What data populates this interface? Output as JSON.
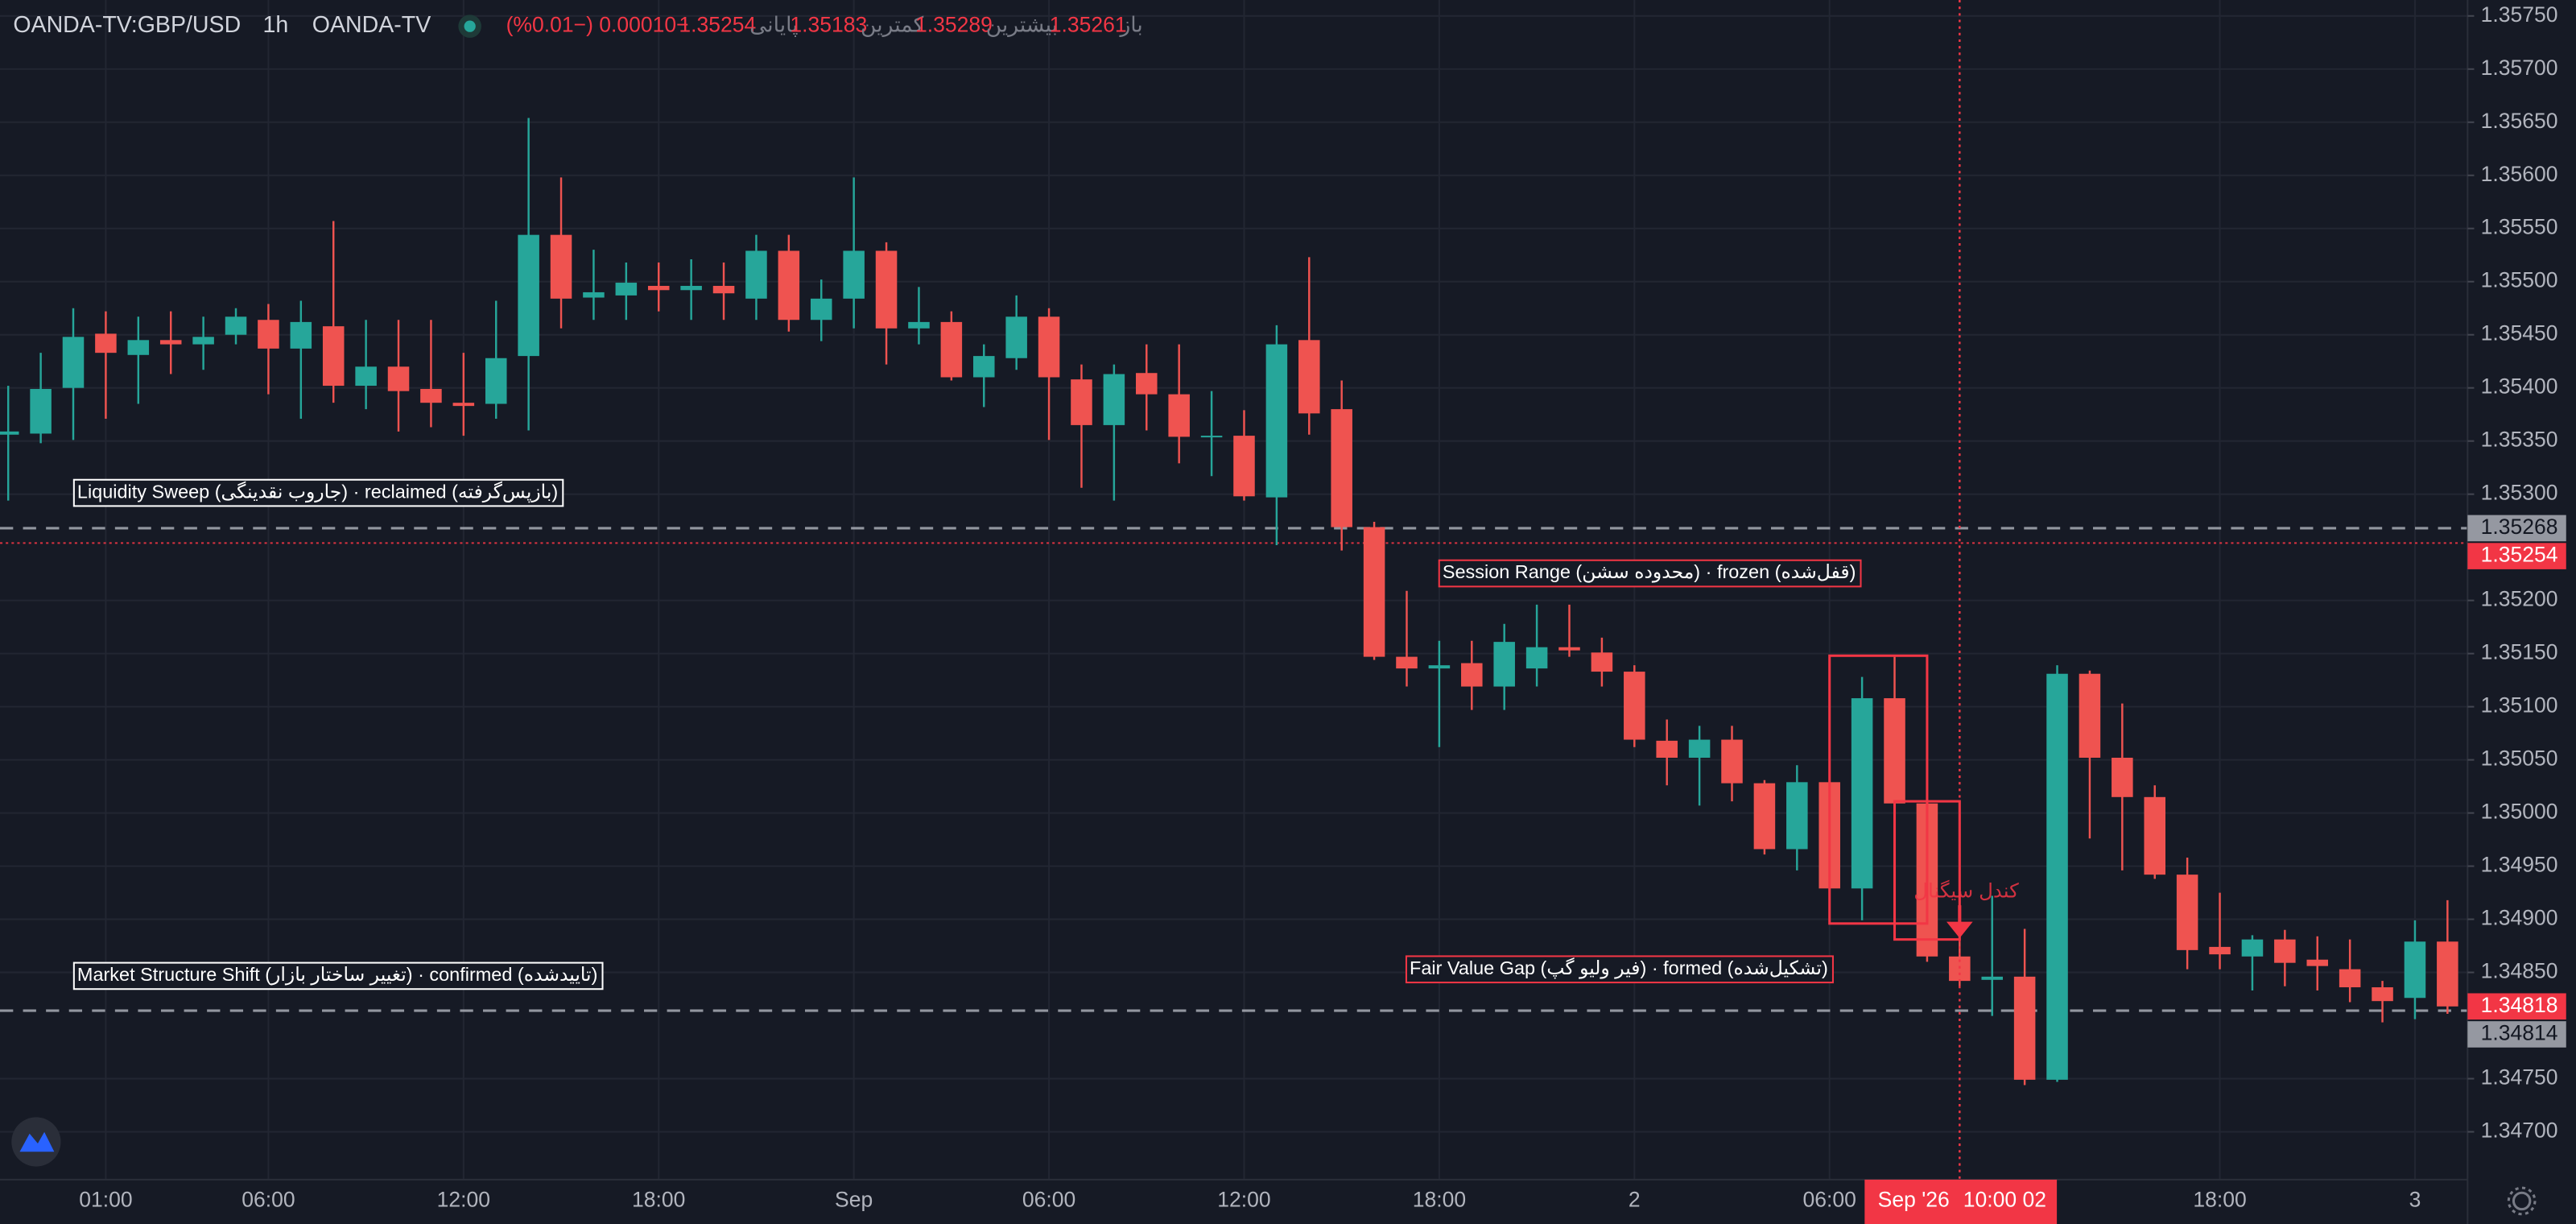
{
  "header": {
    "symbol": "OANDA-TV:GBP/USD",
    "interval": "1h",
    "source": "OANDA-TV",
    "ohlc": [
      {
        "label": "باز",
        "value": 1.35261
      },
      {
        "label": "بیشترین",
        "value": 1.35289
      },
      {
        "label": "کمترین",
        "value": 1.35183
      },
      {
        "label": "پایانی",
        "value": 1.35254
      }
    ],
    "change": "−0.00010 (−0.01%)"
  },
  "chart_data": {
    "type": "candlestick",
    "categories": [
      null,
      null,
      null,
      "01:00",
      null,
      null,
      null,
      null,
      "06:00",
      null,
      null,
      null,
      null,
      null,
      "12:00",
      null,
      null,
      null,
      null,
      null,
      "18:00",
      null,
      null,
      null,
      null,
      null,
      "Sep",
      null,
      null,
      null,
      null,
      null,
      "06:00",
      null,
      null,
      null,
      null,
      null,
      "12:00",
      null,
      null,
      null,
      null,
      null,
      "18:00",
      null,
      null,
      null,
      null,
      null,
      "2",
      null,
      null,
      null,
      null,
      null,
      "06:00",
      null,
      null,
      null,
      null,
      null,
      null,
      null,
      null,
      null,
      null,
      null,
      "18:00",
      null,
      null,
      null,
      null,
      null,
      "3",
      null
    ],
    "open": [
      1.35356,
      1.35357,
      1.354,
      1.35451,
      1.35431,
      1.35445,
      1.35441,
      1.3545,
      1.35464,
      1.35437,
      1.35458,
      1.35402,
      1.3542,
      1.35399,
      1.35386,
      1.35385,
      1.3543,
      1.35544,
      1.35485,
      1.35487,
      1.35496,
      1.35492,
      1.35496,
      1.35484,
      1.35529,
      1.35464,
      1.35484,
      1.35529,
      1.35456,
      1.35462,
      1.3541,
      1.35428,
      1.35467,
      1.35408,
      1.35365,
      1.35414,
      1.35394,
      1.35354,
      1.35355,
      1.35297,
      1.35445,
      1.3538,
      1.35269,
      1.35147,
      1.35136,
      1.35141,
      1.35119,
      1.35136,
      1.35156,
      1.35151,
      1.35133,
      1.35068,
      1.35052,
      1.35069,
      1.35028,
      1.34966,
      1.35029,
      1.34929,
      1.35108,
      1.35009,
      1.34865,
      1.34843,
      1.34846,
      1.34749,
      1.35131,
      1.35052,
      1.35015,
      1.34942,
      1.34874,
      1.34865,
      1.34881,
      1.34862,
      1.34853,
      1.34836,
      1.34826,
      1.34879
    ],
    "high": [
      1.35402,
      1.35433,
      1.35475,
      1.35472,
      1.35467,
      1.35472,
      1.35467,
      1.35475,
      1.35479,
      1.35482,
      1.35557,
      1.35464,
      1.35464,
      1.35464,
      1.35433,
      1.35482,
      1.35654,
      1.35598,
      1.3553,
      1.35518,
      1.35518,
      1.35521,
      1.35518,
      1.35544,
      1.35544,
      1.35502,
      1.35598,
      1.35537,
      1.35495,
      1.35472,
      1.35441,
      1.35487,
      1.35475,
      1.35422,
      1.35422,
      1.35441,
      1.35441,
      1.35397,
      1.35379,
      1.35459,
      1.35523,
      1.35407,
      1.35274,
      1.35209,
      1.35162,
      1.35162,
      1.35178,
      1.35196,
      1.35196,
      1.35165,
      1.35139,
      1.35088,
      1.35082,
      1.35082,
      1.35031,
      1.35045,
      1.35045,
      1.35128,
      1.35147,
      1.35009,
      1.34899,
      1.34922,
      1.34891,
      1.35139,
      1.35134,
      1.35103,
      1.35026,
      1.34958,
      1.34925,
      1.34885,
      1.3489,
      1.34884,
      1.34881,
      1.34842,
      1.34899,
      1.34918
    ],
    "low": [
      1.35294,
      1.35348,
      1.35351,
      1.35371,
      1.35385,
      1.35413,
      1.35417,
      1.35441,
      1.35394,
      1.35371,
      1.35386,
      1.3538,
      1.35359,
      1.35363,
      1.35355,
      1.35371,
      1.3536,
      1.35456,
      1.35464,
      1.35464,
      1.35472,
      1.35464,
      1.35464,
      1.35464,
      1.35453,
      1.35444,
      1.35456,
      1.35422,
      1.35441,
      1.35407,
      1.35382,
      1.35417,
      1.35351,
      1.35306,
      1.35294,
      1.3536,
      1.35329,
      1.35317,
      1.35294,
      1.35252,
      1.35356,
      1.35247,
      1.35144,
      1.35119,
      1.35062,
      1.35097,
      1.35097,
      1.35119,
      1.35147,
      1.35119,
      1.35062,
      1.35026,
      1.35007,
      1.35011,
      1.34961,
      1.34946,
      1.34922,
      1.34899,
      1.34899,
      1.3486,
      1.34837,
      1.34809,
      1.34744,
      1.34747,
      1.34976,
      1.34946,
      1.34938,
      1.34853,
      1.34853,
      1.34833,
      1.34837,
      1.34833,
      1.34822,
      1.34803,
      1.34806,
      1.34811
    ],
    "close": [
      1.35359,
      1.35399,
      1.35448,
      1.35433,
      1.35445,
      1.35441,
      1.35448,
      1.35467,
      1.35437,
      1.35462,
      1.35402,
      1.3542,
      1.35397,
      1.35386,
      1.35383,
      1.35428,
      1.35544,
      1.35484,
      1.3549,
      1.35499,
      1.35492,
      1.35496,
      1.35489,
      1.35529,
      1.35464,
      1.35484,
      1.35529,
      1.35456,
      1.35462,
      1.3541,
      1.3543,
      1.35467,
      1.3541,
      1.35365,
      1.35413,
      1.35394,
      1.35354,
      1.35355,
      1.35298,
      1.35441,
      1.35376,
      1.35269,
      1.35147,
      1.35136,
      1.35139,
      1.35119,
      1.35161,
      1.35156,
      1.35153,
      1.35133,
      1.35069,
      1.35052,
      1.35069,
      1.35028,
      1.34966,
      1.35029,
      1.34929,
      1.35108,
      1.35009,
      1.34865,
      1.34842,
      1.34846,
      1.34749,
      1.35131,
      1.35052,
      1.35015,
      1.34942,
      1.34871,
      1.34867,
      1.34881,
      1.34859,
      1.34856,
      1.34836,
      1.34823,
      1.34879,
      1.34818
    ],
    "up_color": "#26a69a",
    "down_color": "#ef5350",
    "ylim": [
      1.34655,
      1.35765
    ],
    "yticks": [
      {
        "value": 1.347,
        "label": "1.34700"
      },
      {
        "value": 1.3475,
        "label": "1.34750"
      },
      {
        "value": 1.3485,
        "label": "1.34850"
      },
      {
        "value": 1.349,
        "label": "1.34900"
      },
      {
        "value": 1.3495,
        "label": "1.34950"
      },
      {
        "value": 1.35,
        "label": "1.35000"
      },
      {
        "value": 1.3505,
        "label": "1.35050"
      },
      {
        "value": 1.351,
        "label": "1.35100"
      },
      {
        "value": 1.3515,
        "label": "1.35150"
      },
      {
        "value": 1.352,
        "label": "1.35200"
      },
      {
        "value": 1.353,
        "label": "1.35300"
      },
      {
        "value": 1.3535,
        "label": "1.35350"
      },
      {
        "value": 1.354,
        "label": "1.35400"
      },
      {
        "value": 1.3545,
        "label": "1.35450"
      },
      {
        "value": 1.355,
        "label": "1.35500"
      },
      {
        "value": 1.3555,
        "label": "1.35550"
      },
      {
        "value": 1.356,
        "label": "1.35600"
      },
      {
        "value": 1.3565,
        "label": "1.35650"
      },
      {
        "value": 1.357,
        "label": "1.35700"
      },
      {
        "value": 1.3575,
        "label": "1.35750"
      }
    ],
    "grid": true,
    "price_lines": [
      {
        "value": 1.35268,
        "style": "dashed",
        "color": "#b2b5be"
      },
      {
        "value": 1.35254,
        "style": "dotted",
        "color": "#f23645"
      },
      {
        "value": 1.34814,
        "style": "dashed",
        "color": "#b2b5be"
      }
    ],
    "axis_labels": [
      {
        "value": 1.35268,
        "color": "#9598a1"
      },
      {
        "value": 1.35254,
        "color": "#f23645"
      },
      {
        "value": 1.34818,
        "color": "#f23645"
      },
      {
        "value": 1.34814,
        "color": "#9598a1"
      }
    ],
    "crosshair": {
      "index": 60,
      "color": "#f23645",
      "date": "Sep '26",
      "time": "10:00 02"
    },
    "boxes": [
      {
        "start": 56,
        "end": 59,
        "top": 1.35148,
        "bottom": 1.34896,
        "color": "#f23645"
      },
      {
        "start": 58,
        "end": 60,
        "top": 1.35011,
        "bottom": 1.34881,
        "color": "#f23645"
      }
    ],
    "annotations": [
      {
        "text": "Liquidity Sweep (جاروب نقدینگی) · reclaimed (بازپس‌گرفته)",
        "color": "#ffffff"
      },
      {
        "text": "Session Range (محدوده سشن) · frozen (قفل‌شده)",
        "color": "#f23645"
      },
      {
        "text": "Market Structure Shift (تغییر ساختار بازار) · confirmed (تاییدشده)",
        "color": "#ffffff"
      },
      {
        "text": "Fair Value Gap (فیر ولیو گپ) · formed (تشکیل‌شده)",
        "color": "#f23645"
      }
    ],
    "signal": {
      "text": "کندل سیگنال",
      "color": "#f23645"
    }
  }
}
